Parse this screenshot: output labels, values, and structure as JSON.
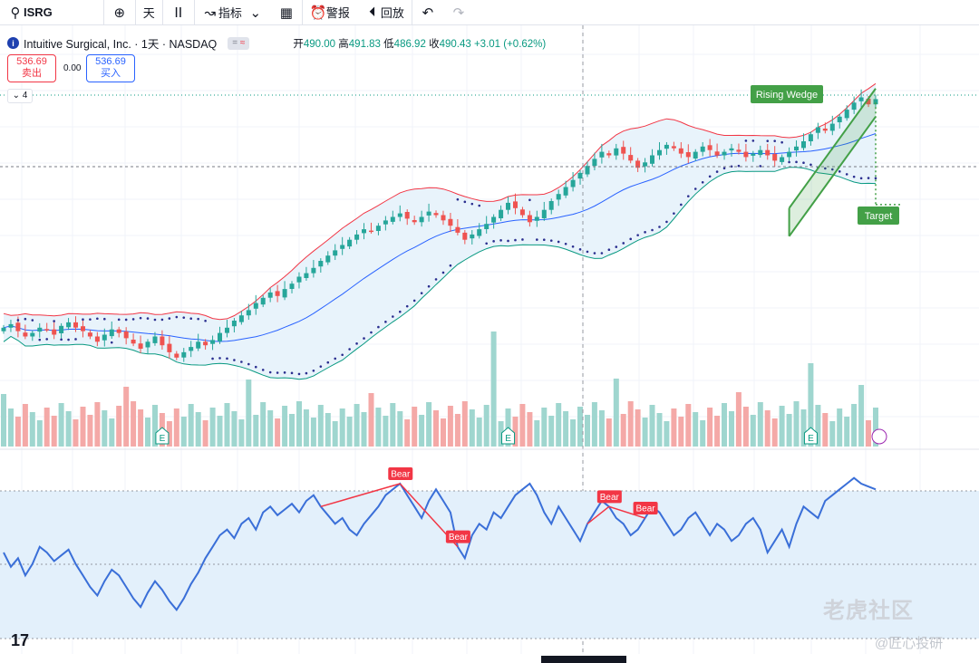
{
  "toolbar": {
    "symbol": "ISRG",
    "interval": "天",
    "indicators": "指标",
    "alerts": "警报",
    "replay": "回放"
  },
  "legend": {
    "title": "Intuitive Surgical, Inc. · 1天 · NASDAQ",
    "eq_badge": "=",
    "eq_badge_red": "≈",
    "open_label": "开",
    "open": "490.00",
    "high_label": "高",
    "high": "491.83",
    "low_label": "低",
    "low": "486.92",
    "close_label": "收",
    "close": "490.43",
    "change": "+3.01 (+0.62%)"
  },
  "trade": {
    "sell_price": "536.69",
    "sell_label": "卖出",
    "spread": "0.00",
    "buy_price": "536.69",
    "buy_label": "买入"
  },
  "collapse_count": "4",
  "watermark": {
    "brand": "老虎社区",
    "author": "@匠心投研"
  },
  "colors": {
    "up": "#26a69a",
    "down": "#ef5350",
    "upline": "#089981",
    "ma": "#2962ff",
    "bb_upper": "#f23645",
    "bb_lower": "#089981",
    "bb_fill": "#e8f3fb",
    "rsi": "#3a6fd8",
    "rsi_band": "#e3f0fb",
    "bear": "#f23645",
    "wedge": "#43a047"
  },
  "chart_data": {
    "type": "candlestick",
    "symbol": "ISRG",
    "interval": "1D",
    "last": {
      "open": 490.0,
      "high": 491.83,
      "low": 486.92,
      "close": 490.43,
      "change": 3.01,
      "change_pct": 0.62
    },
    "price_closes": [
      360,
      362,
      358,
      355,
      357,
      360,
      359,
      356,
      361,
      363,
      360,
      358,
      355,
      352,
      356,
      359,
      357,
      354,
      351,
      348,
      352,
      355,
      350,
      346,
      343,
      346,
      349,
      352,
      350,
      353,
      357,
      360,
      364,
      367,
      370,
      374,
      377,
      380,
      378,
      382,
      385,
      389,
      391,
      394,
      398,
      401,
      404,
      407,
      410,
      413,
      416,
      415,
      418,
      421,
      423,
      425,
      422,
      420,
      423,
      426,
      424,
      421,
      418,
      414,
      410,
      413,
      416,
      419,
      423,
      427,
      431,
      428,
      424,
      420,
      423,
      427,
      432,
      436,
      440,
      444,
      448,
      452,
      456,
      460,
      458,
      462,
      459,
      455,
      451,
      454,
      458,
      461,
      464,
      462,
      459,
      457,
      460,
      463,
      461,
      458,
      460,
      462,
      460,
      457,
      459,
      461,
      458,
      455,
      457,
      460,
      463,
      466,
      470,
      474,
      472,
      476,
      480,
      484,
      488,
      491,
      487,
      490
    ],
    "rising_wedge_label": "Rising Wedge",
    "target_label": "Target",
    "earnings_marker": "E",
    "rsi": {
      "values": [
        60,
        55,
        58,
        52,
        56,
        62,
        60,
        57,
        59,
        61,
        56,
        52,
        48,
        45,
        50,
        54,
        52,
        48,
        44,
        41,
        46,
        50,
        47,
        43,
        40,
        44,
        49,
        53,
        58,
        62,
        66,
        68,
        65,
        70,
        72,
        68,
        74,
        76,
        73,
        75,
        77,
        74,
        78,
        80,
        76,
        73,
        70,
        72,
        68,
        66,
        70,
        73,
        76,
        80,
        82,
        84,
        80,
        76,
        72,
        78,
        82,
        78,
        74,
        62,
        58,
        66,
        70,
        68,
        74,
        72,
        76,
        80,
        82,
        84,
        80,
        74,
        70,
        76,
        72,
        68,
        64,
        70,
        74,
        78,
        76,
        72,
        70,
        66,
        68,
        72,
        76,
        74,
        70,
        66,
        68,
        72,
        74,
        70,
        66,
        70,
        68,
        64,
        66,
        70,
        72,
        68,
        60,
        64,
        68,
        62,
        70,
        76,
        74,
        72,
        78,
        80,
        82,
        84,
        86,
        84,
        83,
        82
      ],
      "bear_label": "Bear"
    }
  }
}
